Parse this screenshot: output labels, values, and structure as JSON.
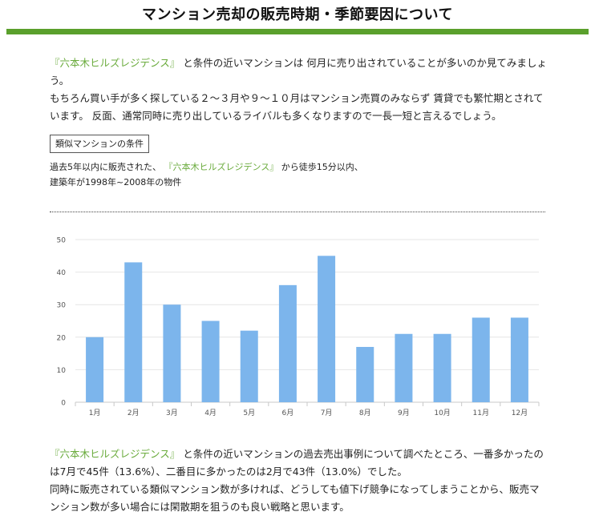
{
  "page": {
    "title": "マンション売却の販売時期・季節要因について"
  },
  "intro": {
    "link_text": "『六本木ヒルズレジデンス』",
    "line1_rest": "と条件の近いマンションは 何月に売り出されていることが多いのか見てみましょう。",
    "line2": "もちろん買い手が多く探している２～３月や９～１０月はマンション売買のみならず 賃貸でも繁忙期とされています。 反面、通常同時に売り出しているライバルも多くなりますので一長一短と言えるでしょう。"
  },
  "conditions": {
    "label": "類似マンションの条件",
    "prefix": "過去5年以内に販売された、",
    "link_text": "『六本木ヒルズレジデンス』",
    "suffix": "から徒歩15分以内、",
    "line2": "建築年が1998年~2008年の物件"
  },
  "chart_data": {
    "type": "bar",
    "categories": [
      "1月",
      "2月",
      "3月",
      "4月",
      "5月",
      "6月",
      "7月",
      "8月",
      "9月",
      "10月",
      "11月",
      "12月"
    ],
    "values": [
      20,
      43,
      30,
      25,
      22,
      36,
      45,
      17,
      21,
      21,
      26,
      26
    ],
    "ylim": [
      0,
      50
    ],
    "yticks": [
      "0",
      "10",
      "20",
      "30",
      "40",
      "50"
    ],
    "grid": true,
    "bar_color": "#7cb5ec",
    "title": "",
    "xlabel": "",
    "ylabel": ""
  },
  "outro": {
    "link_text": "『六本木ヒルズレジデンス』",
    "line1_rest": "と条件の近いマンションの過去売出事例について調べたところ、一番多かったのは7月で45件（13.6%）、二番目に多かったのは2月で43件（13.0%）でした。",
    "line2": "同時に販売されている類似マンション数が多ければ、どうしても値下げ競争になってしまうことから、販売マンション数が多い場合には閑散期を狙うのも良い戦略と思います。"
  },
  "colors": {
    "accent_green": "#5aa02c",
    "link_green": "#6aab3c"
  }
}
